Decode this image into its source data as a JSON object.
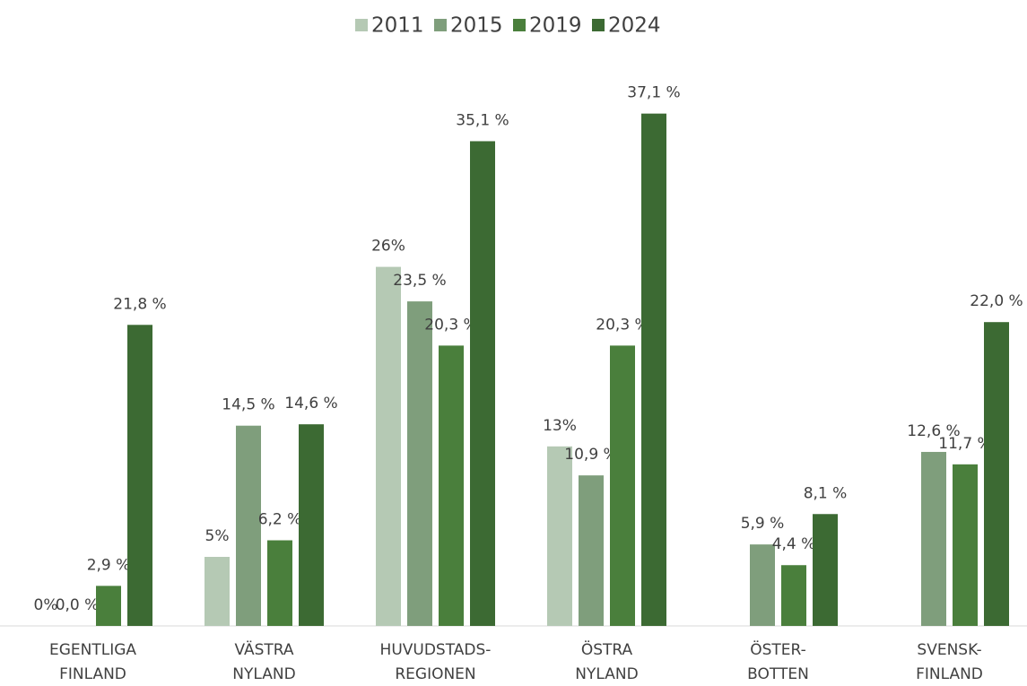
{
  "chart_data": {
    "type": "bar",
    "categories": [
      "EGENTLIGA\nFINLAND",
      "VÄSTRA\nNYLAND",
      "HUVUDSTADS-\nREGIONEN",
      "ÖSTRA\nNYLAND",
      "ÖSTER-\nBOTTEN",
      "SVENSK-\nFINLAND"
    ],
    "series": [
      {
        "name": "2011",
        "color": "#b5c9b4",
        "values": [
          0,
          5,
          26,
          13,
          null,
          null
        ],
        "value_labels": [
          "0%",
          "5%",
          "26%",
          "13%",
          null,
          null
        ]
      },
      {
        "name": "2015",
        "color": "#7f9e7c",
        "values": [
          0,
          14.5,
          23.5,
          10.9,
          5.9,
          12.6
        ],
        "value_labels": [
          "0,0 %",
          "14,5 %",
          "23,5 %",
          "10,9 %",
          "5,9 %",
          "12,6 %"
        ]
      },
      {
        "name": "2019",
        "color": "#4a7f3c",
        "values": [
          2.9,
          6.2,
          20.3,
          20.3,
          4.4,
          11.7
        ],
        "value_labels": [
          "2,9 %",
          "6,2 %",
          "20,3 %",
          "20,3 %",
          "4,4 %",
          "11,7 %"
        ]
      },
      {
        "name": "2024",
        "color": "#3c6a33",
        "values": [
          21.8,
          14.6,
          35.1,
          37.1,
          8.1,
          22.0
        ],
        "value_labels": [
          "21,8 %",
          "14,6 %",
          "35,1 %",
          "37,1 %",
          "8,1 %",
          "22,0 %"
        ]
      }
    ],
    "ylim": [
      0,
      40
    ],
    "legend": "top"
  }
}
